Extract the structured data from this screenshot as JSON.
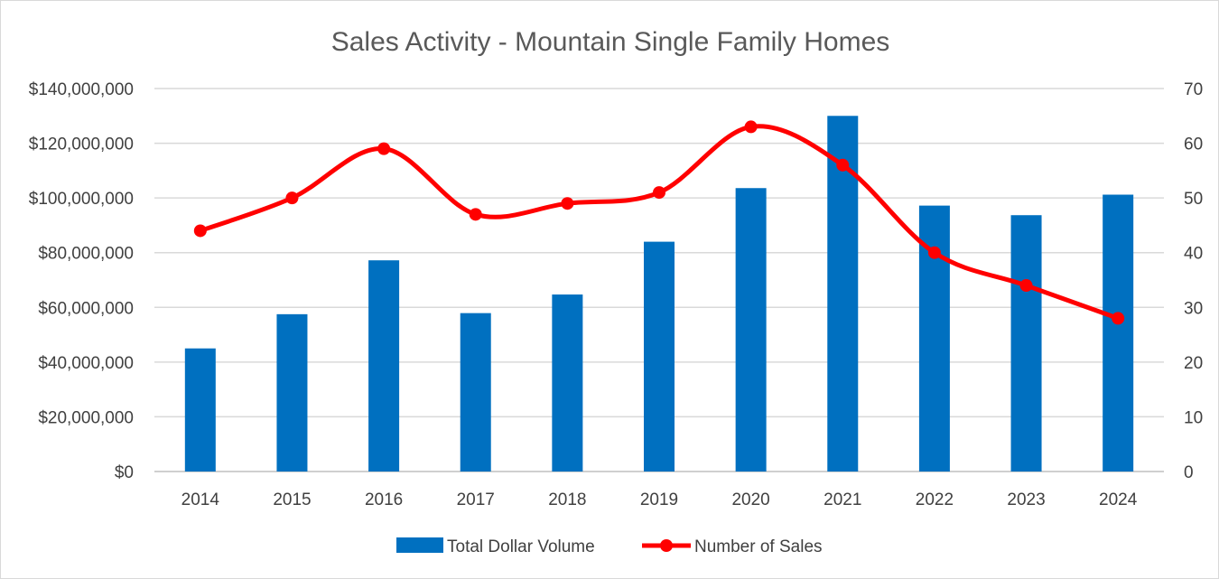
{
  "chart_data": {
    "type": "bar+line",
    "title": "Sales Activity - Mountain Single Family Homes",
    "categories": [
      "2014",
      "2015",
      "2016",
      "2017",
      "2018",
      "2019",
      "2020",
      "2021",
      "2022",
      "2023",
      "2024"
    ],
    "series": [
      {
        "name": "Total Dollar Volume",
        "type": "bar",
        "axis": "left",
        "color": "#0070C0",
        "values": [
          45000000,
          57500000,
          77200000,
          57900000,
          64700000,
          84000000,
          103600000,
          130000000,
          97200000,
          93700000,
          101200000
        ]
      },
      {
        "name": "Number of Sales",
        "type": "line",
        "smooth": true,
        "axis": "right",
        "color": "#FF0000",
        "values": [
          44,
          50,
          59,
          47,
          49,
          51,
          63,
          56,
          40,
          34,
          28
        ]
      }
    ],
    "y_left": {
      "min": 0,
      "max": 140000000,
      "step": 20000000,
      "tick_labels": [
        "$0",
        "$20,000,000",
        "$40,000,000",
        "$60,000,000",
        "$80,000,000",
        "$100,000,000",
        "$120,000,000",
        "$140,000,000"
      ]
    },
    "y_right": {
      "min": 0,
      "max": 70,
      "step": 10,
      "tick_labels": [
        "0",
        "10",
        "20",
        "30",
        "40",
        "50",
        "60",
        "70"
      ]
    },
    "grid": true,
    "legend_position": "bottom-center",
    "xlabel": "",
    "ylabel": ""
  }
}
